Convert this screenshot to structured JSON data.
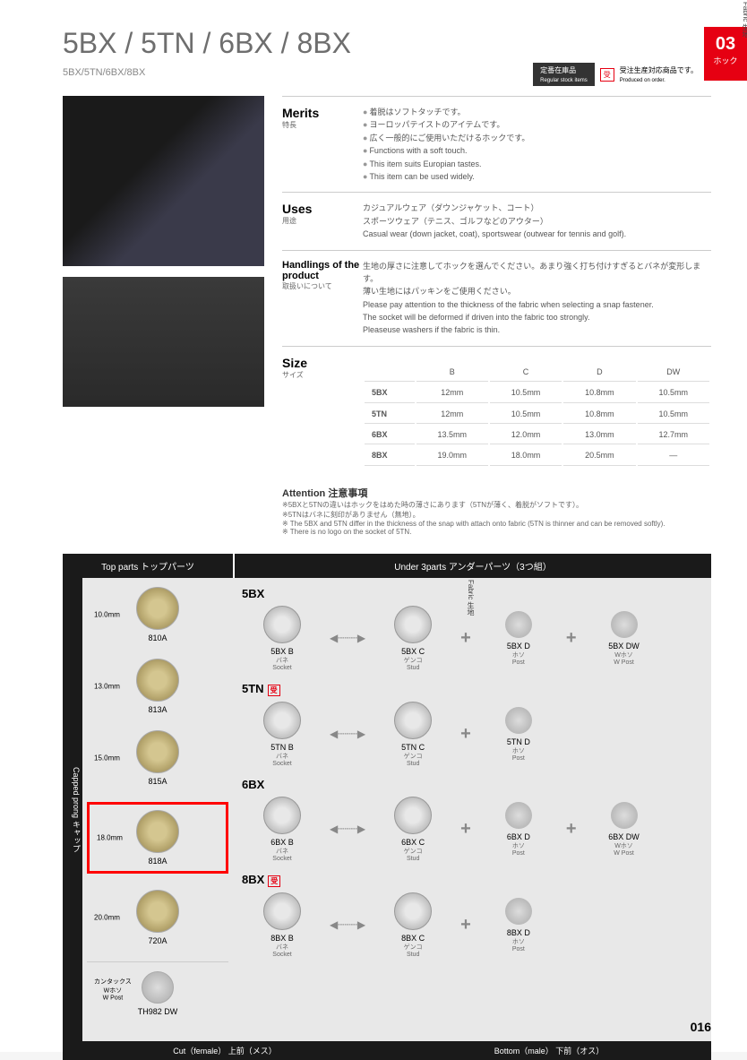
{
  "header": {
    "title": "5BX / 5TN / 6BX / 8BX",
    "subtitle": "5BX/5TN/6BX/8BX",
    "tab_num": "03",
    "tab_label": "ホック",
    "badge_stock": "定番在庫品",
    "badge_stock_sub": "Regular stock items",
    "badge_order_icon": "受",
    "badge_order": "受注生産対応商品です。",
    "badge_order_sub": "Produced on order."
  },
  "merits": {
    "label_en": "Merits",
    "label_jp": "特長",
    "lines": [
      "着脱はソフトタッチです。",
      "ヨーロッパテイストのアイテムです。",
      "広く一般的にご使用いただけるホックです。",
      "Functions with a soft touch.",
      "This item suits Europian tastes.",
      "This item can be used widely."
    ]
  },
  "uses": {
    "label_en": "Uses",
    "label_jp": "用途",
    "jp1": "カジュアルウェア（ダウンジャケット、コート）",
    "jp2": "スポーツウェア（テニス、ゴルフなどのアウター）",
    "en": "Casual wear (down jacket, coat), sportswear (outwear for tennis and golf)."
  },
  "handling": {
    "label_en": "Handlings of the product",
    "label_jp": "取扱いについて",
    "jp1": "生地の厚さに注意してホックを選んでください。あまり強く打ち付けすぎるとバネが変形します。",
    "jp2": "薄い生地にはパッキンをご使用ください。",
    "en1": "Please pay attention to the thickness of the fabric when selecting a snap fastener.",
    "en2": "The socket will be deformed if driven into the fabric too strongly.",
    "en3": "Pleaseuse washers if the fabric is thin."
  },
  "size": {
    "label_en": "Size",
    "label_jp": "サイズ",
    "cols": [
      "B",
      "C",
      "D",
      "DW"
    ],
    "rows": [
      {
        "name": "5BX",
        "vals": [
          "12mm",
          "10.5mm",
          "10.8mm",
          "10.5mm"
        ]
      },
      {
        "name": "5TN",
        "vals": [
          "12mm",
          "10.5mm",
          "10.8mm",
          "10.5mm"
        ]
      },
      {
        "name": "6BX",
        "vals": [
          "13.5mm",
          "12.0mm",
          "13.0mm",
          "12.7mm"
        ]
      },
      {
        "name": "8BX",
        "vals": [
          "19.0mm",
          "18.0mm",
          "20.5mm",
          "—"
        ]
      }
    ]
  },
  "attention": {
    "heading": "Attention 注意事項",
    "jp1": "※5BXと5TNの違いはホックをはめた時の薄さにあります（5TNが薄く、着脱がソフトです）。",
    "jp2": "※5TNはバネに刻印がありません（無地）。",
    "en1": "※ The 5BX and 5TN differ in the thickness of the snap with attach onto fabric (5TN is thinner and can be removed softly).",
    "en2": "※ There is no logo on the socket of 5TN."
  },
  "parts": {
    "top_header": "Top parts トップパーツ",
    "under_header": "Under 3parts アンダーパーツ（3つ組）",
    "side_label": "Capped prong キャップ",
    "fabric_label": "Fabric 生地",
    "top_items": [
      {
        "size": "10.0mm",
        "name": "810A",
        "highlighted": false
      },
      {
        "size": "13.0mm",
        "name": "813A",
        "highlighted": false
      },
      {
        "size": "15.0mm",
        "name": "815A",
        "highlighted": false
      },
      {
        "size": "18.0mm",
        "name": "818A",
        "highlighted": true
      },
      {
        "size": "20.0mm",
        "name": "720A",
        "highlighted": false
      }
    ],
    "top_extra": {
      "label": "カンタックス\nWホソ",
      "sub": "W Post",
      "name": "TH982 DW"
    },
    "under_groups": [
      {
        "title": "5BX",
        "order_mark": false,
        "items": [
          {
            "code": "5BX B",
            "jp": "バネ",
            "en": "Socket"
          },
          {
            "code": "5BX C",
            "jp": "ゲンコ",
            "en": "Stud"
          },
          {
            "code": "5BX D",
            "jp": "ホソ",
            "en": "Post"
          },
          {
            "code": "5BX DW",
            "jp": "Wホソ",
            "en": "W Post"
          }
        ]
      },
      {
        "title": "5TN",
        "order_mark": true,
        "items": [
          {
            "code": "5TN B",
            "jp": "バネ",
            "en": "Socket"
          },
          {
            "code": "5TN C",
            "jp": "ゲンコ",
            "en": "Stud"
          },
          {
            "code": "5TN D",
            "jp": "ホソ",
            "en": "Post"
          }
        ]
      },
      {
        "title": "6BX",
        "order_mark": false,
        "items": [
          {
            "code": "6BX B",
            "jp": "バネ",
            "en": "Socket"
          },
          {
            "code": "6BX C",
            "jp": "ゲンコ",
            "en": "Stud"
          },
          {
            "code": "6BX D",
            "jp": "ホソ",
            "en": "Post"
          },
          {
            "code": "6BX DW",
            "jp": "Wホソ",
            "en": "W Post"
          }
        ]
      },
      {
        "title": "8BX",
        "order_mark": true,
        "items": [
          {
            "code": "8BX B",
            "jp": "バネ",
            "en": "Socket"
          },
          {
            "code": "8BX C",
            "jp": "ゲンコ",
            "en": "Stud"
          },
          {
            "code": "8BX D",
            "jp": "ホソ",
            "en": "Post"
          }
        ]
      }
    ],
    "footer_left": "Cut（female） 上前（メス）",
    "footer_right": "Bottom（male） 下前（オス）"
  },
  "page_number": "016"
}
